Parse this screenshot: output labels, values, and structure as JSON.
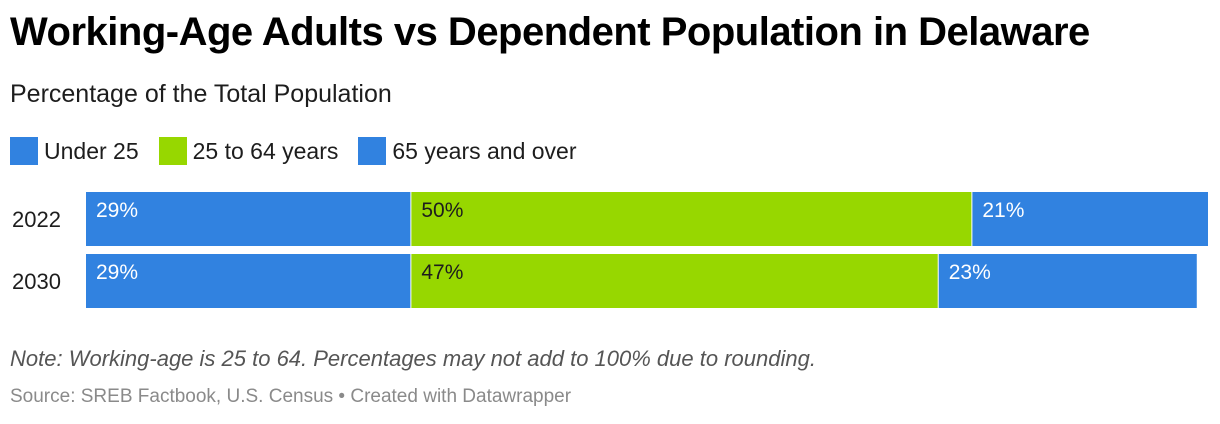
{
  "header": {
    "title": "Working-Age Adults vs Dependent Population in Delaware",
    "subtitle": "Percentage of the Total Population"
  },
  "legend": [
    {
      "label": "Under 25",
      "color": "#3182e0"
    },
    {
      "label": "25 to 64 years",
      "color": "#97d700"
    },
    {
      "label": "65 years and over",
      "color": "#3182e0"
    }
  ],
  "chart_data": {
    "type": "bar",
    "orientation": "horizontal",
    "stacked": true,
    "categories": [
      "2022",
      "2030"
    ],
    "series": [
      {
        "name": "Under 25",
        "values": [
          29,
          29
        ],
        "labels": [
          "29%",
          "29%"
        ],
        "color": "#3182e0",
        "label_color": "#ffffff"
      },
      {
        "name": "25 to 64 years",
        "values": [
          50,
          47
        ],
        "labels": [
          "50%",
          "47%"
        ],
        "color": "#97d700",
        "label_color": "#1d1d1d"
      },
      {
        "name": "65 years and over",
        "values": [
          21,
          23
        ],
        "labels": [
          "21%",
          "23%"
        ],
        "color": "#3182e0",
        "label_color": "#ffffff"
      }
    ],
    "xlim": [
      0,
      100
    ],
    "legend_position": "top-left",
    "grid": false
  },
  "footer": {
    "note": "Note: Working-age is 25 to 64. Percentages may not add to 100% due to rounding.",
    "source": "Source: SREB Factbook, U.S. Census • Created with Datawrapper"
  }
}
